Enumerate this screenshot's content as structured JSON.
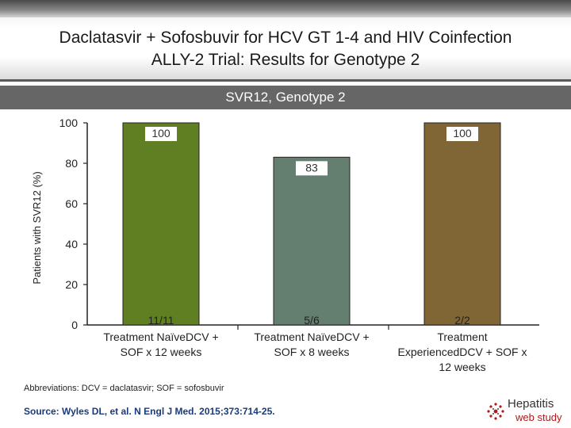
{
  "header": {
    "title_line1": "Daclatasvir + Sofosbuvir for HCV GT 1-4 and HIV Coinfection",
    "title_line2": "ALLY-2 Trial: Results for Genotype 2"
  },
  "subtitle": "SVR12, Genotype 2",
  "chart_data": {
    "type": "bar",
    "title": "SVR12, Genotype 2",
    "ylabel": "Patients with SVR12 (%)",
    "xlabel": "",
    "ylim": [
      0,
      100
    ],
    "yticks": [
      0,
      20,
      40,
      60,
      80,
      100
    ],
    "grid": false,
    "categories": [
      [
        "Treatment Naïve",
        "DCV + SOF x 12 weeks"
      ],
      [
        "Treatment Naïve",
        "DCV + SOF x 8 weeks"
      ],
      [
        "Treatment Experienced",
        "DCV + SOF x 12 weeks"
      ]
    ],
    "category_labels": [
      [
        "Treatment Naïve",
        "DCV + SOF x 12 weeks"
      ],
      [
        "Treatment Naïve",
        "DCV + SOF x 8 weeks"
      ],
      [
        "Treatment Experienced",
        "DCV + SOF x 12 weeks"
      ]
    ],
    "category_lines": [
      [
        "Treatment Naïve",
        "DCV +",
        "SOF x 12 weeks"
      ],
      [
        "Treatment Naïve",
        "DCV +",
        "SOF x 8 weeks"
      ],
      [
        "Treatment",
        "Experienced",
        "DCV + SOF x",
        "12 weeks"
      ]
    ],
    "values": [
      100,
      83,
      100
    ],
    "value_labels": [
      "100",
      "83",
      "100"
    ],
    "counts": [
      "11/11",
      "5/6",
      "2/2"
    ],
    "colors": [
      "#5f7f22",
      "#647e70",
      "#806634"
    ]
  },
  "footer": {
    "abbreviations": "Abbreviations: DCV = daclatasvir; SOF = sofosbuvir",
    "source": "Source: Wyles DL, et al. N Engl J Med. 2015;373:714-25."
  },
  "logo": {
    "main": "Hepatitis",
    "sub": "web study",
    "icon": "hepatitis-logo-icon"
  }
}
